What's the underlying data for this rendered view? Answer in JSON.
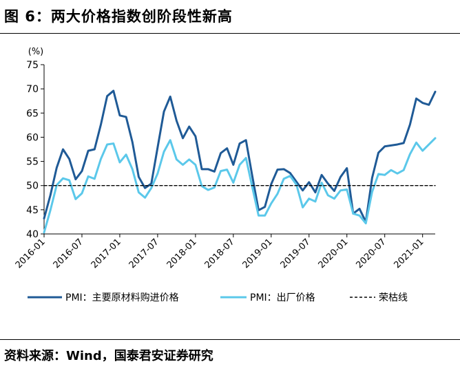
{
  "figure": {
    "title": "图 6：两大价格指数创阶段性新高",
    "source": "资料来源：Wind，国泰君安证券研究"
  },
  "chart_data": {
    "type": "line",
    "y_unit_label": "(%)",
    "ylim": [
      40,
      75
    ],
    "yticks": [
      40,
      45,
      50,
      55,
      60,
      65,
      70,
      75
    ],
    "x_start": "2016-01",
    "x_end": "2021-03",
    "xticks": [
      "2016-01",
      "2016-07",
      "2017-01",
      "2017-07",
      "2018-01",
      "2018-07",
      "2019-01",
      "2019-07",
      "2020-01",
      "2020-07",
      "2021-01"
    ],
    "grid": false,
    "legend_position": "bottom",
    "x": [
      "2016-01",
      "2016-02",
      "2016-03",
      "2016-04",
      "2016-05",
      "2016-06",
      "2016-07",
      "2016-08",
      "2016-09",
      "2016-10",
      "2016-11",
      "2016-12",
      "2017-01",
      "2017-02",
      "2017-03",
      "2017-04",
      "2017-05",
      "2017-06",
      "2017-07",
      "2017-08",
      "2017-09",
      "2017-10",
      "2017-11",
      "2017-12",
      "2018-01",
      "2018-02",
      "2018-03",
      "2018-04",
      "2018-05",
      "2018-06",
      "2018-07",
      "2018-08",
      "2018-09",
      "2018-10",
      "2018-11",
      "2018-12",
      "2019-01",
      "2019-02",
      "2019-03",
      "2019-04",
      "2019-05",
      "2019-06",
      "2019-07",
      "2019-08",
      "2019-09",
      "2019-10",
      "2019-11",
      "2019-12",
      "2020-01",
      "2020-02",
      "2020-03",
      "2020-04",
      "2020-05",
      "2020-06",
      "2020-07",
      "2020-08",
      "2020-09",
      "2020-10",
      "2020-11",
      "2020-12",
      "2021-01",
      "2021-02",
      "2021-03"
    ],
    "series": [
      {
        "name": "PMI：主要原材料购进价格",
        "color": "#1f5a96",
        "style": "solid",
        "values": [
          43.2,
          48.0,
          53.7,
          57.5,
          55.5,
          51.3,
          53.0,
          57.2,
          57.5,
          62.6,
          68.5,
          69.6,
          64.5,
          64.2,
          59.0,
          51.8,
          49.5,
          50.4,
          57.9,
          65.3,
          68.4,
          63.4,
          59.8,
          62.2,
          60.2,
          53.4,
          53.4,
          52.9,
          56.7,
          57.7,
          54.3,
          58.7,
          59.4,
          52.0,
          44.9,
          45.6,
          50.3,
          53.3,
          53.4,
          52.6,
          50.8,
          49.0,
          50.7,
          48.6,
          52.2,
          50.4,
          48.9,
          51.8,
          53.6,
          44.2,
          45.2,
          42.5,
          51.6,
          56.8,
          58.1,
          58.3,
          58.5,
          58.8,
          62.6,
          68.0,
          67.1,
          66.7,
          69.4
        ]
      },
      {
        "name": "PMI：出厂价格",
        "color": "#5bc8ea",
        "style": "solid",
        "values": [
          40.3,
          44.9,
          50.1,
          51.5,
          51.1,
          47.2,
          48.4,
          51.9,
          51.4,
          55.5,
          58.5,
          58.7,
          54.8,
          56.4,
          53.4,
          48.6,
          47.5,
          49.5,
          52.5,
          57.0,
          59.4,
          55.4,
          54.3,
          55.4,
          54.3,
          49.9,
          49.1,
          49.6,
          53.0,
          53.3,
          50.6,
          54.3,
          55.7,
          49.7,
          43.8,
          43.8,
          46.3,
          48.3,
          51.4,
          52.0,
          50.2,
          45.5,
          47.3,
          46.7,
          50.6,
          48.0,
          47.3,
          49.0,
          49.2,
          44.2,
          43.8,
          42.2,
          48.7,
          52.4,
          52.2,
          53.2,
          52.5,
          53.2,
          56.5,
          58.9,
          57.2,
          58.5,
          59.8
        ]
      },
      {
        "name": "荣枯线",
        "color": "#000000",
        "style": "dashed",
        "values": [
          50,
          50,
          50,
          50,
          50,
          50,
          50,
          50,
          50,
          50,
          50,
          50,
          50,
          50,
          50,
          50,
          50,
          50,
          50,
          50,
          50,
          50,
          50,
          50,
          50,
          50,
          50,
          50,
          50,
          50,
          50,
          50,
          50,
          50,
          50,
          50,
          50,
          50,
          50,
          50,
          50,
          50,
          50,
          50,
          50,
          50,
          50,
          50,
          50,
          50,
          50,
          50,
          50,
          50,
          50,
          50,
          50,
          50,
          50,
          50,
          50,
          50,
          50
        ]
      }
    ]
  }
}
